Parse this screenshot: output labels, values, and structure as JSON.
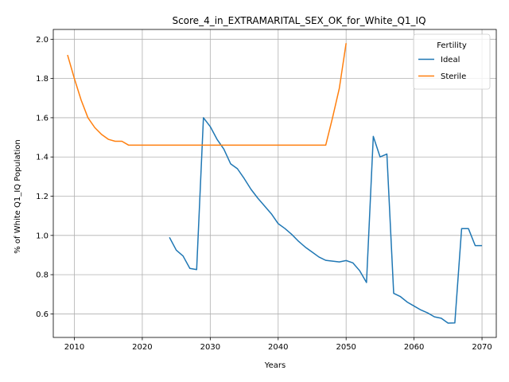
{
  "chart_data": {
    "type": "line",
    "title": "Score_4_in_EXTRAMARITAL_SEX_OK_for_White_Q1_IQ",
    "xlabel": "Years",
    "ylabel": "% of White Q1_IQ Population",
    "xlim": [
      2006.9,
      2072.1
    ],
    "ylim": [
      0.48,
      2.05
    ],
    "xticks": [
      2010,
      2020,
      2030,
      2040,
      2050,
      2060,
      2070
    ],
    "yticks": [
      0.6,
      0.8,
      1.0,
      1.2,
      1.4,
      1.6,
      1.8,
      2.0
    ],
    "xtick_labels": [
      "2010",
      "2020",
      "2030",
      "2040",
      "2050",
      "2060",
      "2070"
    ],
    "ytick_labels": [
      "0.6",
      "0.8",
      "1.0",
      "1.2",
      "1.4",
      "1.6",
      "1.8",
      "2.0"
    ],
    "grid": true,
    "legend": {
      "title": "Fertility",
      "placement": "top-right"
    },
    "series": [
      {
        "name": "Ideal",
        "color": "#1f77b4",
        "x": [
          2024,
          2025,
          2026,
          2027,
          2028,
          2029,
          2030,
          2031,
          2032,
          2033,
          2034,
          2035,
          2036,
          2037,
          2038,
          2039,
          2040,
          2041,
          2042,
          2043,
          2044,
          2045,
          2046,
          2047,
          2048,
          2049,
          2050,
          2051,
          2052,
          2053,
          2054,
          2055,
          2056,
          2057,
          2058,
          2059,
          2060,
          2061,
          2062,
          2063,
          2064,
          2065,
          2066,
          2067,
          2068,
          2069,
          2070
        ],
        "values": [
          0.99,
          0.925,
          0.895,
          0.832,
          0.826,
          1.6,
          1.555,
          1.49,
          1.44,
          1.365,
          1.34,
          1.29,
          1.235,
          1.19,
          1.15,
          1.11,
          1.06,
          1.035,
          1.005,
          0.97,
          0.94,
          0.915,
          0.89,
          0.873,
          0.869,
          0.865,
          0.872,
          0.86,
          0.82,
          0.76,
          1.505,
          1.4,
          1.415,
          0.705,
          0.688,
          0.66,
          0.64,
          0.62,
          0.605,
          0.585,
          0.578,
          0.553,
          0.554,
          1.035,
          1.035,
          0.948,
          0.948
        ]
      },
      {
        "name": "Sterile",
        "color": "#ff7f0e",
        "x": [
          2009,
          2010,
          2011,
          2012,
          2013,
          2014,
          2015,
          2016,
          2017,
          2018,
          2019,
          2020,
          2021,
          2022,
          2023,
          2024,
          2025,
          2026,
          2027,
          2028,
          2029,
          2030,
          2031,
          2032,
          2033,
          2034,
          2035,
          2036,
          2037,
          2038,
          2039,
          2040,
          2041,
          2042,
          2043,
          2044,
          2045,
          2046,
          2047,
          2048,
          2049,
          2050
        ],
        "values": [
          1.92,
          1.8,
          1.69,
          1.6,
          1.55,
          1.515,
          1.49,
          1.48,
          1.48,
          1.46,
          1.46,
          1.46,
          1.46,
          1.46,
          1.46,
          1.46,
          1.46,
          1.46,
          1.46,
          1.46,
          1.46,
          1.46,
          1.46,
          1.46,
          1.46,
          1.46,
          1.46,
          1.46,
          1.46,
          1.46,
          1.46,
          1.46,
          1.46,
          1.46,
          1.46,
          1.46,
          1.46,
          1.46,
          1.46,
          1.6,
          1.75,
          1.98
        ]
      }
    ]
  }
}
